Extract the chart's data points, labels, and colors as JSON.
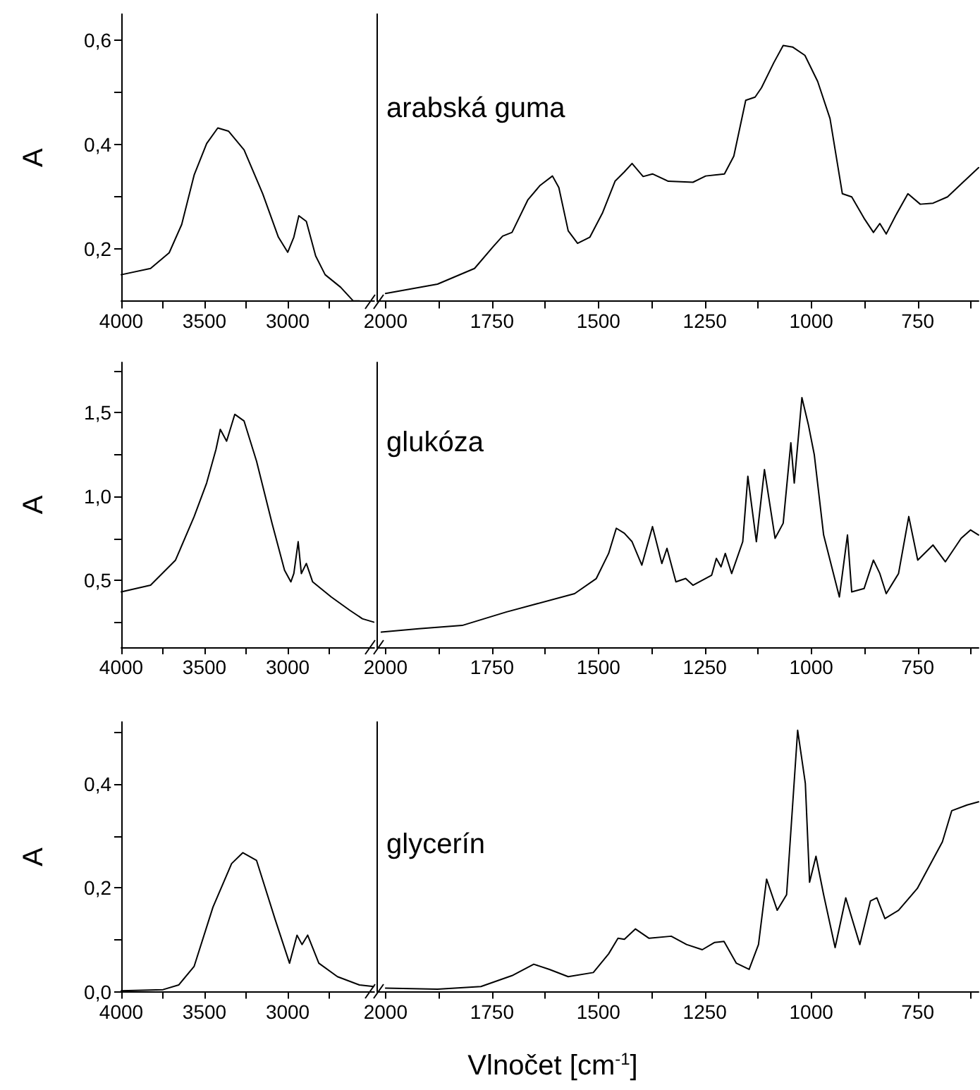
{
  "chart_data": [
    {
      "type": "line",
      "marker": "none",
      "ylabel": "A",
      "xlim": [
        4000,
        2480
      ],
      "ylim": [
        0.1,
        0.65
      ],
      "xticks": [
        4000,
        {
          "value": 3750,
          "label": null
        },
        3500,
        {
          "value": 3250,
          "label": null
        },
        3000,
        {
          "value": 2750,
          "label": null
        }
      ],
      "yticks": [
        {
          "value": 0.2,
          "label": "0,2"
        },
        {
          "value": 0.3,
          "label": null
        },
        {
          "value": 0.4,
          "label": "0,4"
        },
        {
          "value": 0.5,
          "label": null
        },
        {
          "value": 0.6,
          "label": "0,6"
        }
      ],
      "x": [
        4000,
        3824,
        3712,
        3637,
        3562,
        3487,
        3420,
        3356,
        3262,
        3150,
        3056,
        3000,
        2963,
        2933,
        2888,
        2832,
        2775,
        2682,
        2607,
        2569
      ],
      "series": [
        {
          "color": "#000000",
          "values": [
            0.151,
            0.163,
            0.193,
            0.247,
            0.342,
            0.402,
            0.432,
            0.426,
            0.39,
            0.306,
            0.223,
            0.194,
            0.223,
            0.264,
            0.253,
            0.187,
            0.151,
            0.127,
            0.101,
            0.101
          ]
        }
      ]
    },
    {
      "type": "line",
      "marker": "none",
      "tick_labels": "x",
      "xlim": [
        2020,
        607
      ],
      "ylim": [
        0.1,
        0.65
      ],
      "xticks": [
        2000,
        {
          "value": 1875,
          "label": null
        },
        1750,
        {
          "value": 1625,
          "label": null
        },
        1500,
        {
          "value": 1375,
          "label": null
        },
        1250,
        {
          "value": 1125,
          "label": null
        },
        1000,
        {
          "value": 875,
          "label": null
        },
        750,
        {
          "value": 625,
          "label": null
        }
      ],
      "annotations": [
        "arabská guma"
      ],
      "x": [
        2000,
        1878,
        1791,
        1747,
        1725,
        1703,
        1666,
        1637,
        1608,
        1593,
        1571,
        1549,
        1520,
        1490,
        1461,
        1439,
        1421,
        1395,
        1373,
        1336,
        1278,
        1248,
        1204,
        1182,
        1154,
        1132,
        1117,
        1088,
        1066,
        1044,
        1015,
        985,
        956,
        927,
        905,
        876,
        854,
        839,
        824,
        802,
        773,
        744,
        714,
        680,
        641,
        607
      ],
      "series": [
        {
          "color": "#000000",
          "values": [
            0.115,
            0.133,
            0.163,
            0.205,
            0.225,
            0.232,
            0.294,
            0.322,
            0.34,
            0.318,
            0.235,
            0.211,
            0.223,
            0.27,
            0.33,
            0.348,
            0.364,
            0.339,
            0.344,
            0.33,
            0.328,
            0.34,
            0.344,
            0.378,
            0.485,
            0.491,
            0.509,
            0.557,
            0.59,
            0.587,
            0.571,
            0.521,
            0.45,
            0.306,
            0.3,
            0.259,
            0.232,
            0.249,
            0.229,
            0.264,
            0.306,
            0.286,
            0.288,
            0.3,
            0.33,
            0.356
          ]
        }
      ]
    },
    {
      "type": "line",
      "marker": "none",
      "ylabel": "A",
      "xlim": [
        4000,
        2480
      ],
      "ylim": [
        0.1,
        1.8
      ],
      "xticks": [
        4000,
        {
          "value": 3750,
          "label": null
        },
        3500,
        {
          "value": 3250,
          "label": null
        },
        3000,
        {
          "value": 2750,
          "label": null
        }
      ],
      "yticks": [
        {
          "value": 0.25,
          "label": null
        },
        {
          "value": 0.5,
          "label": "0,5"
        },
        {
          "value": 0.75,
          "label": null
        },
        {
          "value": 1.0,
          "label": "1,0"
        },
        {
          "value": 1.25,
          "label": null
        },
        {
          "value": 1.5,
          "label": "1,5"
        },
        {
          "value": 1.75,
          "label": null
        }
      ],
      "x": [
        4000,
        3824,
        3674,
        3562,
        3487,
        3431,
        3405,
        3367,
        3318,
        3262,
        3187,
        3094,
        3019,
        2981,
        2963,
        2937,
        2918,
        2888,
        2850,
        2738,
        2626,
        2551,
        2483
      ],
      "series": [
        {
          "color": "#000000",
          "values": [
            0.43,
            0.47,
            0.62,
            0.88,
            1.08,
            1.28,
            1.4,
            1.33,
            1.49,
            1.45,
            1.21,
            0.84,
            0.56,
            0.49,
            0.54,
            0.73,
            0.54,
            0.6,
            0.49,
            0.4,
            0.32,
            0.27,
            0.25
          ]
        }
      ]
    },
    {
      "type": "line",
      "marker": "none",
      "tick_labels": "x",
      "xlim": [
        2020,
        607
      ],
      "ylim": [
        0.1,
        1.8
      ],
      "xticks": [
        2000,
        {
          "value": 1875,
          "label": null
        },
        1750,
        {
          "value": 1625,
          "label": null
        },
        1500,
        {
          "value": 1375,
          "label": null
        },
        1250,
        {
          "value": 1125,
          "label": null
        },
        1000,
        {
          "value": 875,
          "label": null
        },
        750,
        {
          "value": 625,
          "label": null
        }
      ],
      "annotations": [
        "glukóza"
      ],
      "x": [
        2010,
        1922,
        1820,
        1717,
        1644,
        1556,
        1505,
        1476,
        1458,
        1439,
        1421,
        1398,
        1373,
        1351,
        1339,
        1318,
        1295,
        1278,
        1234,
        1223,
        1212,
        1202,
        1187,
        1161,
        1149,
        1129,
        1110,
        1085,
        1066,
        1048,
        1040,
        1022,
        1007,
        993,
        971,
        934,
        915,
        905,
        876,
        854,
        839,
        824,
        795,
        771,
        750,
        714,
        685,
        648,
        626,
        607
      ],
      "series": [
        {
          "color": "#000000",
          "values": [
            0.19,
            0.21,
            0.23,
            0.31,
            0.36,
            0.42,
            0.51,
            0.66,
            0.81,
            0.78,
            0.73,
            0.59,
            0.82,
            0.6,
            0.69,
            0.49,
            0.51,
            0.47,
            0.53,
            0.63,
            0.58,
            0.66,
            0.54,
            0.73,
            1.12,
            0.73,
            1.16,
            0.75,
            0.84,
            1.32,
            1.08,
            1.59,
            1.43,
            1.25,
            0.77,
            0.4,
            0.77,
            0.43,
            0.45,
            0.62,
            0.54,
            0.42,
            0.54,
            0.88,
            0.62,
            0.71,
            0.61,
            0.75,
            0.8,
            0.77
          ]
        }
      ]
    },
    {
      "type": "line",
      "marker": "none",
      "ylabel": "A",
      "xlim": [
        4000,
        2480
      ],
      "ylim": [
        0.0,
        0.52
      ],
      "xticks": [
        4000,
        {
          "value": 3750,
          "label": null
        },
        3500,
        {
          "value": 3250,
          "label": null
        },
        3000,
        {
          "value": 2750,
          "label": null
        }
      ],
      "yticks": [
        {
          "value": 0.0,
          "label": "0,0"
        },
        {
          "value": 0.1,
          "label": null
        },
        {
          "value": 0.2,
          "label": "0,2"
        },
        {
          "value": 0.3,
          "label": null
        },
        {
          "value": 0.4,
          "label": "0,4"
        },
        {
          "value": 0.5,
          "label": null
        }
      ],
      "x": [
        4000,
        3749,
        3655,
        3562,
        3449,
        3337,
        3270,
        3187,
        3075,
        2989,
        2944,
        2914,
        2880,
        2813,
        2701,
        2569,
        2483
      ],
      "series": [
        {
          "color": "#000000",
          "values": [
            0.002,
            0.004,
            0.013,
            0.049,
            0.163,
            0.247,
            0.268,
            0.253,
            0.139,
            0.055,
            0.109,
            0.091,
            0.109,
            0.055,
            0.029,
            0.013,
            0.01
          ]
        }
      ]
    },
    {
      "type": "line",
      "marker": "none",
      "tick_labels": "x",
      "xlim": [
        2020,
        607
      ],
      "ylim": [
        0.0,
        0.52
      ],
      "xticks": [
        2000,
        {
          "value": 1875,
          "label": null
        },
        1750,
        {
          "value": 1625,
          "label": null
        },
        1500,
        {
          "value": 1375,
          "label": null
        },
        1250,
        {
          "value": 1125,
          "label": null
        },
        1000,
        {
          "value": 875,
          "label": null
        },
        750,
        {
          "value": 625,
          "label": null
        }
      ],
      "annotations": [
        "glycerín"
      ],
      "xlabel": "Vlnočet [cm$^{-1}$]",
      "x": [
        2000,
        1878,
        1776,
        1703,
        1652,
        1615,
        1571,
        1512,
        1476,
        1454,
        1439,
        1413,
        1381,
        1329,
        1293,
        1256,
        1227,
        1205,
        1176,
        1146,
        1124,
        1105,
        1080,
        1058,
        1032,
        1014,
        1004,
        989,
        971,
        944,
        919,
        886,
        861,
        846,
        827,
        795,
        751,
        692,
        670,
        634,
        607
      ],
      "series": [
        {
          "color": "#000000",
          "values": [
            0.007,
            0.005,
            0.01,
            0.031,
            0.053,
            0.043,
            0.029,
            0.037,
            0.073,
            0.103,
            0.101,
            0.121,
            0.103,
            0.107,
            0.091,
            0.081,
            0.095,
            0.097,
            0.055,
            0.043,
            0.091,
            0.217,
            0.157,
            0.187,
            0.504,
            0.402,
            0.211,
            0.261,
            0.187,
            0.085,
            0.181,
            0.091,
            0.175,
            0.181,
            0.141,
            0.157,
            0.199,
            0.289,
            0.349,
            0.36,
            0.366
          ]
        }
      ]
    }
  ]
}
